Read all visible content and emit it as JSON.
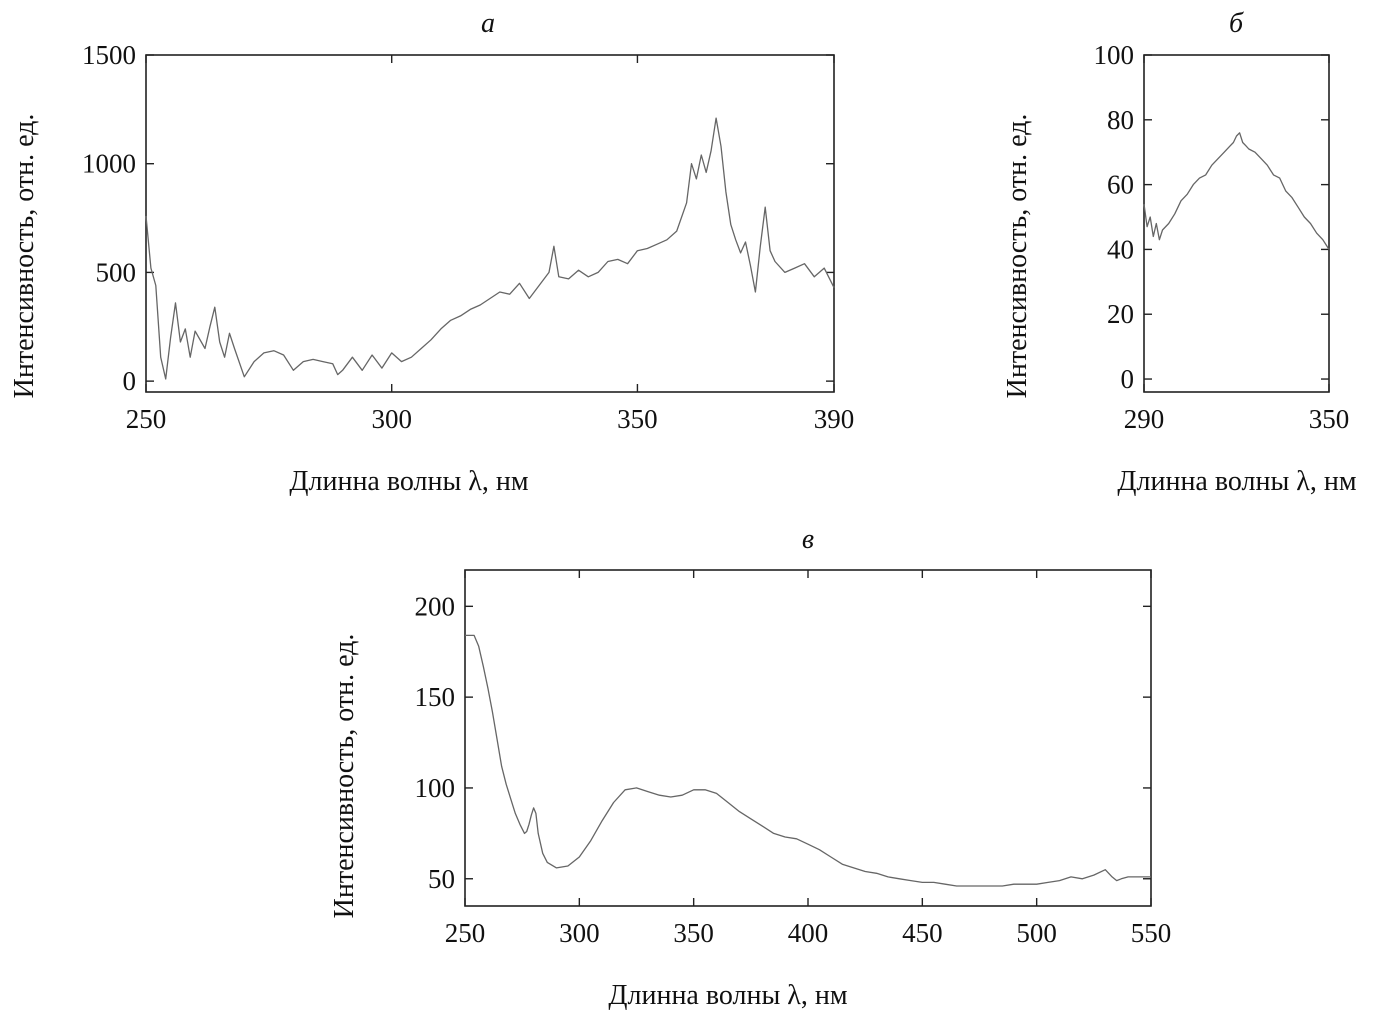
{
  "chart_data": [
    {
      "panel": "а",
      "type": "line",
      "xlabel": "Длинна волны λ, нм",
      "ylabel": "Интенсивность, отн. ед.",
      "xlim": [
        250,
        390
      ],
      "ylim": [
        -50,
        1500
      ],
      "xticks": [
        250,
        300,
        350,
        390
      ],
      "yticks": [
        0,
        500,
        1000,
        1500
      ],
      "grid": false,
      "series": [
        {
          "x": [
            250,
            251,
            252,
            253,
            254,
            255,
            256,
            257,
            258,
            259,
            260,
            262,
            263,
            264,
            265,
            266,
            267,
            268,
            270,
            272,
            274,
            276,
            278,
            280,
            282,
            284,
            286,
            288,
            289,
            290,
            292,
            294,
            296,
            298,
            300,
            302,
            304,
            306,
            308,
            310,
            312,
            314,
            316,
            318,
            320,
            322,
            324,
            326,
            328,
            330,
            332,
            333,
            334,
            336,
            338,
            340,
            342,
            344,
            346,
            348,
            350,
            352,
            354,
            356,
            358,
            360,
            361,
            362,
            363,
            364,
            365,
            366,
            367,
            368,
            369,
            370,
            371,
            372,
            373,
            374,
            375,
            376,
            377,
            378,
            380,
            382,
            384,
            386,
            388,
            390
          ],
          "y": [
            760,
            520,
            440,
            110,
            10,
            200,
            360,
            180,
            240,
            110,
            230,
            150,
            250,
            340,
            180,
            110,
            220,
            150,
            20,
            90,
            130,
            140,
            120,
            50,
            90,
            100,
            90,
            80,
            30,
            50,
            110,
            50,
            120,
            60,
            130,
            90,
            110,
            150,
            190,
            240,
            280,
            300,
            330,
            350,
            380,
            410,
            400,
            450,
            380,
            440,
            500,
            620,
            480,
            470,
            510,
            480,
            500,
            550,
            560,
            540,
            600,
            610,
            630,
            650,
            690,
            820,
            1000,
            930,
            1040,
            960,
            1060,
            1210,
            1080,
            870,
            720,
            650,
            590,
            640,
            530,
            410,
            620,
            800,
            600,
            550,
            500,
            520,
            540,
            480,
            520,
            430
          ]
        }
      ]
    },
    {
      "panel": "б",
      "type": "line",
      "xlabel": "Длинна волны λ, нм",
      "ylabel": "Интенсивность, отн. ед.",
      "xlim": [
        290,
        350
      ],
      "ylim": [
        -4,
        100
      ],
      "xticks": [
        290,
        350
      ],
      "yticks": [
        0,
        20,
        40,
        60,
        80,
        100
      ],
      "grid": false,
      "series": [
        {
          "x": [
            290,
            291,
            292,
            293,
            294,
            295,
            296,
            298,
            300,
            302,
            304,
            306,
            308,
            310,
            312,
            314,
            316,
            318,
            319,
            320,
            321,
            322,
            323,
            324,
            326,
            328,
            330,
            332,
            334,
            336,
            338,
            340,
            342,
            344,
            346,
            348,
            350
          ],
          "y": [
            54,
            47,
            50,
            44,
            48,
            43,
            46,
            48,
            51,
            55,
            57,
            60,
            62,
            63,
            66,
            68,
            70,
            72,
            73,
            75,
            76,
            73,
            72,
            71,
            70,
            68,
            66,
            63,
            62,
            58,
            56,
            53,
            50,
            48,
            45,
            43,
            40
          ]
        }
      ]
    },
    {
      "panel": "в",
      "type": "line",
      "xlabel": "Длинна волны λ, нм",
      "ylabel": "Интенсивность, отн. ед.",
      "xlim": [
        250,
        550
      ],
      "ylim": [
        35,
        220
      ],
      "xticks": [
        250,
        300,
        350,
        400,
        450,
        500,
        550
      ],
      "yticks": [
        50,
        100,
        150,
        200
      ],
      "grid": false,
      "series": [
        {
          "x": [
            250,
            254,
            256,
            258,
            260,
            262,
            264,
            266,
            268,
            270,
            272,
            274,
            276,
            277,
            278,
            279,
            280,
            281,
            282,
            284,
            286,
            290,
            295,
            300,
            305,
            310,
            315,
            320,
            325,
            330,
            335,
            340,
            345,
            350,
            355,
            360,
            365,
            370,
            375,
            380,
            385,
            390,
            395,
            400,
            405,
            410,
            415,
            420,
            425,
            430,
            435,
            440,
            445,
            450,
            455,
            460,
            465,
            470,
            475,
            480,
            485,
            490,
            495,
            500,
            505,
            510,
            515,
            520,
            525,
            530,
            533,
            535,
            537,
            540,
            545,
            550
          ],
          "y": [
            184,
            184,
            178,
            167,
            155,
            142,
            127,
            112,
            102,
            94,
            86,
            80,
            75,
            76,
            80,
            85,
            89,
            86,
            75,
            64,
            59,
            56,
            57,
            62,
            71,
            82,
            92,
            99,
            100,
            98,
            96,
            95,
            96,
            99,
            99,
            97,
            92,
            87,
            83,
            79,
            75,
            73,
            72,
            69,
            66,
            62,
            58,
            56,
            54,
            53,
            51,
            50,
            49,
            48,
            48,
            47,
            46,
            46,
            46,
            46,
            46,
            47,
            47,
            47,
            48,
            49,
            51,
            50,
            52,
            55,
            51,
            49,
            50,
            51,
            51,
            51
          ]
        }
      ]
    }
  ]
}
